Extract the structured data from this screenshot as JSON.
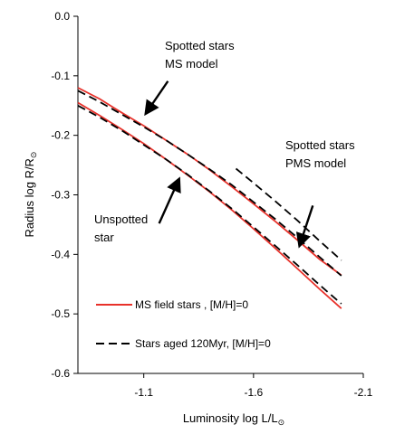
{
  "chart_data": {
    "type": "line",
    "xlabel": "Luminosity log L/L",
    "xlabel_sub": "⊙",
    "ylabel": "Radius log R/R",
    "ylabel_sub": "⊙",
    "xlim": [
      -0.8,
      -2.1
    ],
    "ylim": [
      -0.6,
      0.0
    ],
    "x_reversed": true,
    "x_ticks": [
      -1.1,
      -1.6,
      -2.1
    ],
    "x_tick_labels": [
      "-1.1",
      "-1.6",
      "-2.1"
    ],
    "y_ticks": [
      0.0,
      -0.1,
      -0.2,
      -0.3,
      -0.4,
      -0.5,
      -0.6
    ],
    "y_tick_labels": [
      "0.0",
      "-0.1",
      "-0.2",
      "-0.3",
      "-0.4",
      "-0.5",
      "-0.6"
    ],
    "grid": false,
    "legend_position": "lower-left",
    "legend": [
      {
        "label": "MS field stars , [M/H]=0",
        "color": "#e8312a",
        "dash": "solid"
      },
      {
        "label": "Stars aged 120Myr, [M/H]=0",
        "color": "#000000",
        "dash": "dashed"
      }
    ],
    "series": [
      {
        "group": "MS field stars , [M/H]=0",
        "color": "#e8312a",
        "dash": "solid",
        "x": [
          -0.8,
          -0.9,
          -1.0,
          -1.1,
          -1.2,
          -1.3,
          -1.4,
          -1.5,
          -1.6,
          -1.7,
          -1.8,
          -1.9,
          -2.0
        ],
        "y": [
          -0.12,
          -0.139,
          -0.162,
          -0.184,
          -0.208,
          -0.232,
          -0.258,
          -0.286,
          -0.315,
          -0.345,
          -0.376,
          -0.408,
          -0.435
        ]
      },
      {
        "group": "MS field stars , [M/H]=0",
        "color": "#e8312a",
        "dash": "solid",
        "x": [
          -0.8,
          -0.9,
          -1.0,
          -1.1,
          -1.2,
          -1.3,
          -1.4,
          -1.5,
          -1.6,
          -1.7,
          -1.8,
          -1.9,
          -2.0
        ],
        "y": [
          -0.145,
          -0.167,
          -0.19,
          -0.214,
          -0.24,
          -0.267,
          -0.295,
          -0.325,
          -0.357,
          -0.39,
          -0.424,
          -0.458,
          -0.491
        ]
      },
      {
        "group": "Stars aged 120Myr, [M/H]=0",
        "color": "#000000",
        "dash": "dashed",
        "x": [
          -0.8,
          -0.9,
          -1.0,
          -1.1,
          -1.2,
          -1.3,
          -1.4,
          -1.5,
          -1.6,
          -1.7,
          -1.8,
          -1.9,
          -2.0
        ],
        "y": [
          -0.125,
          -0.144,
          -0.165,
          -0.186,
          -0.208,
          -0.232,
          -0.257,
          -0.283,
          -0.312,
          -0.341,
          -0.372,
          -0.404,
          -0.436
        ]
      },
      {
        "group": "Stars aged 120Myr, [M/H]=0",
        "color": "#000000",
        "dash": "dashed",
        "x": [
          -0.8,
          -0.9,
          -1.0,
          -1.1,
          -1.2,
          -1.3,
          -1.4,
          -1.5,
          -1.6,
          -1.7,
          -1.8,
          -1.9,
          -2.0
        ],
        "y": [
          -0.15,
          -0.17,
          -0.192,
          -0.216,
          -0.24,
          -0.266,
          -0.294,
          -0.323,
          -0.354,
          -0.386,
          -0.418,
          -0.451,
          -0.483
        ]
      },
      {
        "group": "Stars aged 120Myr, [M/H]=0",
        "color": "#000000",
        "dash": "dashed",
        "x": [
          -1.52,
          -1.6,
          -1.7,
          -1.8,
          -1.9,
          -2.0
        ],
        "y": [
          -0.256,
          -0.28,
          -0.311,
          -0.343,
          -0.377,
          -0.41
        ]
      }
    ],
    "annotations": [
      {
        "lines": [
          "Spotted stars",
          "MS model"
        ],
        "arrow_from": [
          -1.21,
          -0.109
        ],
        "arrow_to": [
          -1.11,
          -0.163
        ]
      },
      {
        "lines": [
          "Spotted stars",
          "PMS model"
        ],
        "arrow_from": [
          -1.87,
          -0.318
        ],
        "arrow_to": [
          -1.81,
          -0.385
        ]
      },
      {
        "lines": [
          "Unspotted",
          "star"
        ],
        "arrow_from": [
          -1.17,
          -0.348
        ],
        "arrow_to": [
          -1.26,
          -0.274
        ]
      }
    ]
  }
}
